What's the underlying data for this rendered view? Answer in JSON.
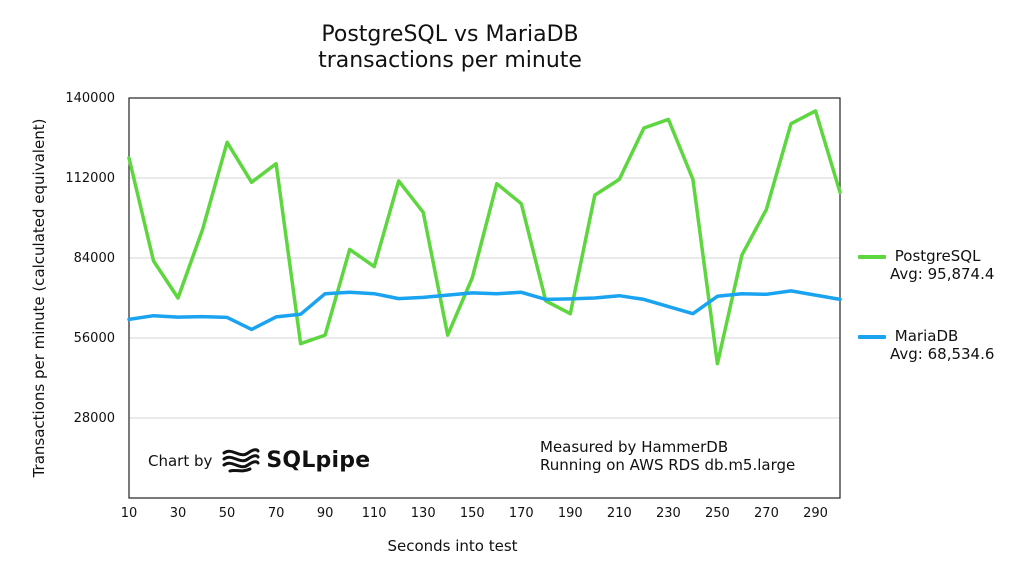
{
  "chart_data": {
    "type": "line",
    "title": [
      "PostgreSQL vs MariaDB",
      "transactions per minute"
    ],
    "xlabel": "Seconds into test",
    "ylabel": "Transactions per minute (calculated equivalent)",
    "xlim": [
      10,
      300
    ],
    "ylim": [
      0,
      140000
    ],
    "yticks": [
      28000,
      56000,
      84000,
      112000,
      140000
    ],
    "ytick_labels": [
      "28000",
      "56000",
      "84000",
      "112000",
      "140000"
    ],
    "xticks": [
      10,
      30,
      50,
      70,
      90,
      110,
      130,
      150,
      170,
      190,
      210,
      230,
      250,
      270,
      290
    ],
    "grid": "horizontal",
    "legend_position": "right",
    "x": [
      10,
      20,
      30,
      40,
      50,
      60,
      70,
      80,
      90,
      100,
      110,
      120,
      130,
      140,
      150,
      160,
      170,
      180,
      190,
      200,
      210,
      220,
      230,
      240,
      250,
      260,
      270,
      280,
      290,
      300
    ],
    "series": [
      {
        "name": "PostgreSQL",
        "avg_label": "Avg: 95,874.4",
        "color": "#5dd63f",
        "values": [
          119000,
          83000,
          70000,
          94000,
          124500,
          110500,
          117000,
          54000,
          57000,
          87000,
          81000,
          111000,
          100000,
          57000,
          77000,
          110000,
          103000,
          69000,
          64500,
          106000,
          111500,
          129500,
          132500,
          111500,
          47000,
          85000,
          101000,
          131000,
          135500,
          107000
        ]
      },
      {
        "name": "MariaDB",
        "avg_label": "Avg: 68,534.6",
        "color": "#1aa3f0",
        "values": [
          62500,
          63800,
          63300,
          63500,
          63200,
          59000,
          63400,
          64300,
          71500,
          72000,
          71500,
          69800,
          70200,
          71000,
          71800,
          71500,
          72000,
          69500,
          69700,
          70000,
          70800,
          69500,
          67000,
          64500,
          70600,
          71500,
          71300,
          72500,
          71000,
          69500
        ]
      }
    ],
    "annotations": {
      "chart_by": "Chart by",
      "logo_text": "SQLpipe",
      "measured_line1": "Measured by HammerDB",
      "measured_line2": "Running on AWS RDS db.m5.large"
    }
  }
}
